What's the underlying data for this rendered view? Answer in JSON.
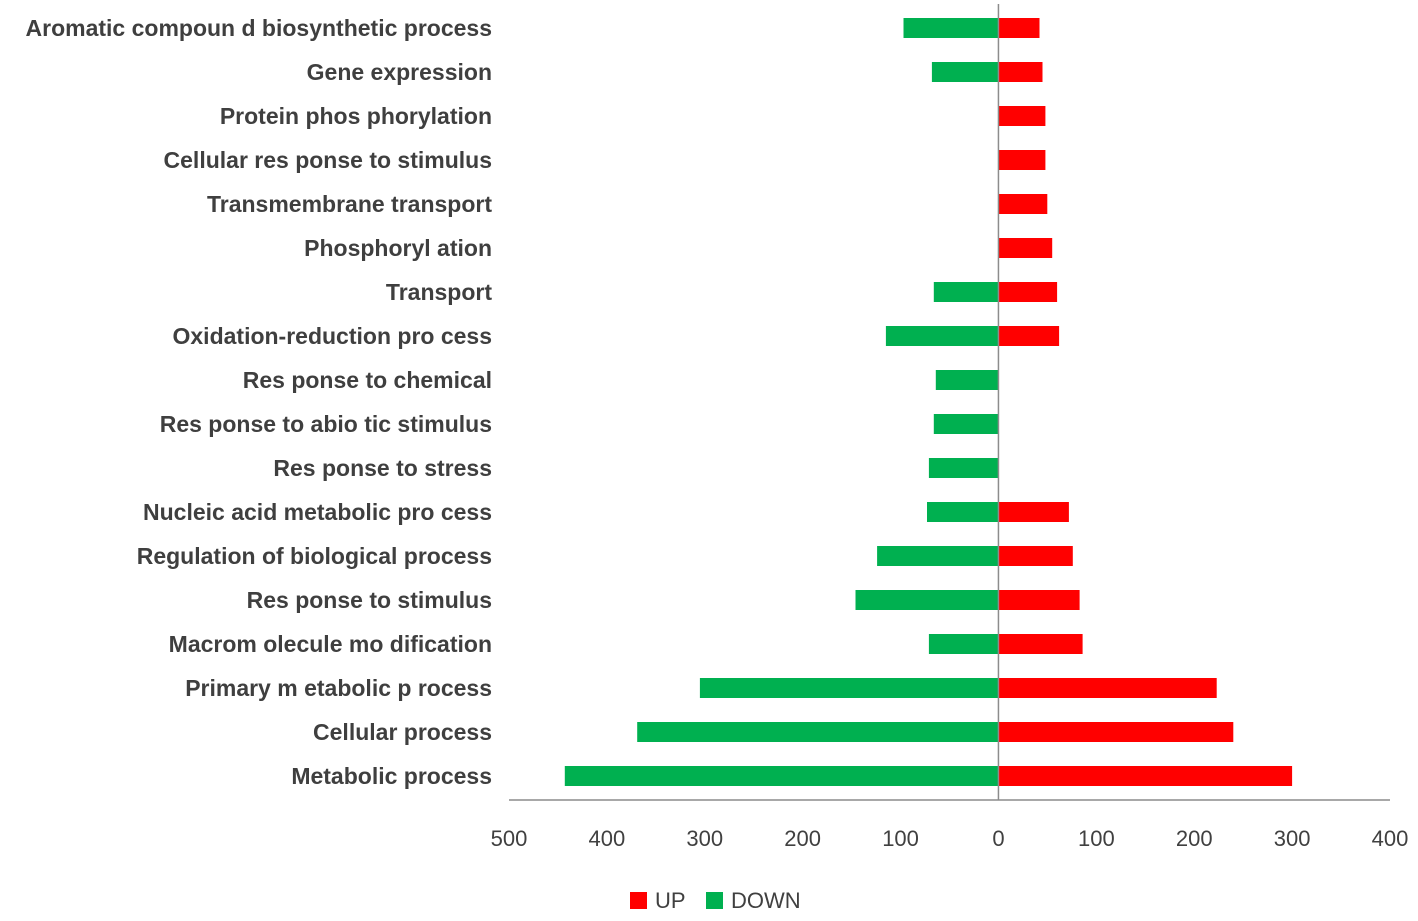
{
  "chart_data": {
    "type": "bar",
    "orientation": "horizontal-diverging",
    "title": "",
    "xlabel": "",
    "ylabel": "",
    "grid": false,
    "legend_position": "bottom",
    "categories": [
      "Aromatic compoun d biosynthetic process",
      "Gene expression",
      "Protein phos phorylation",
      "Cellular res ponse to stimulus",
      "Transmembrane transport",
      "Phosphoryl ation",
      "Transport",
      "Oxidation-reduction pro cess",
      "Res ponse to chemical",
      "Res ponse to abio tic stimulus",
      "Res ponse to stress",
      "Nucleic acid metabolic pro cess",
      "Regulation of biological process",
      "Res ponse to stimulus",
      "Macrom olecule mo dification",
      "Primary m etabolic p rocess",
      "Cellular process",
      "Metabolic process"
    ],
    "series": [
      {
        "name": "UP",
        "color": "#ff0000",
        "direction": "right",
        "values": [
          42,
          45,
          48,
          48,
          50,
          55,
          60,
          62,
          0,
          0,
          0,
          72,
          76,
          83,
          86,
          223,
          240,
          300
        ]
      },
      {
        "name": "DOWN",
        "color": "#00b050",
        "direction": "left",
        "values": [
          97,
          68,
          0,
          0,
          0,
          0,
          66,
          115,
          64,
          66,
          71,
          73,
          124,
          146,
          71,
          305,
          369,
          443
        ]
      }
    ],
    "xlim": [
      -500,
      400
    ],
    "xticks": [
      {
        "value": -500,
        "label": "500"
      },
      {
        "value": -400,
        "label": "400"
      },
      {
        "value": -300,
        "label": "300"
      },
      {
        "value": -200,
        "label": "200"
      },
      {
        "value": -100,
        "label": "100"
      },
      {
        "value": 0,
        "label": "0"
      },
      {
        "value": 100,
        "label": "100"
      },
      {
        "value": 200,
        "label": "200"
      },
      {
        "value": 300,
        "label": "300"
      },
      {
        "value": 400,
        "label": "400"
      }
    ],
    "legend": [
      {
        "name": "UP",
        "color": "#ff0000"
      },
      {
        "name": "DOWN",
        "color": "#00b050"
      }
    ],
    "axis_color": "#8c8c8c"
  }
}
